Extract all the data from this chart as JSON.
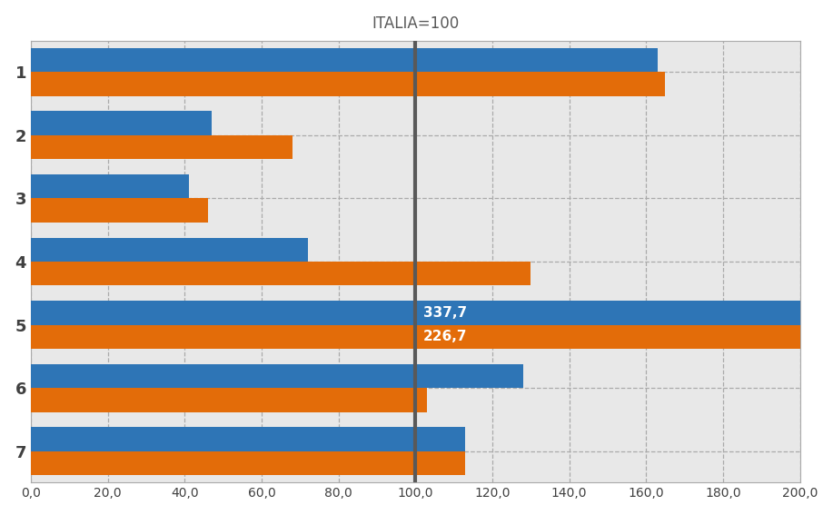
{
  "title": "ITALIA=100",
  "categories": [
    "1",
    "2",
    "3",
    "4",
    "5",
    "6",
    "7"
  ],
  "blue_values": [
    163,
    47,
    41,
    72,
    337.7,
    128,
    113
  ],
  "orange_values": [
    165,
    68,
    46,
    130,
    226.7,
    103,
    113
  ],
  "blue_color": "#2E75B6",
  "orange_color": "#E36C09",
  "vline_color": "#595959",
  "xlim": [
    0,
    200
  ],
  "xticks": [
    0,
    20,
    40,
    60,
    80,
    100,
    120,
    140,
    160,
    180,
    200
  ],
  "xtick_labels": [
    "0,0",
    "20,0",
    "40,0",
    "60,0",
    "80,0",
    "100,0",
    "120,0",
    "140,0",
    "160,0",
    "180,0",
    "200,0"
  ],
  "vline_x": 100,
  "bar5_blue_label": "337,7",
  "bar5_orange_label": "226,7",
  "background_color": "#FFFFFF",
  "plot_bg_color": "#E8E8E8",
  "grid_color": "#AAAAAA",
  "title_color": "#595959",
  "title_fontsize": 12,
  "bar_height": 0.38,
  "label_fontsize": 11
}
